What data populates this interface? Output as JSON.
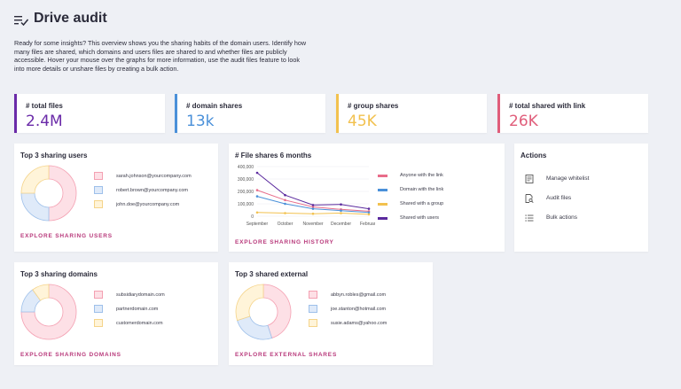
{
  "header": {
    "title": "Drive audit",
    "icon": "playlist-check-icon",
    "description": "Ready for some insights? This overview shows you the sharing habits of the domain users. Identify how many files are shared, which domains and users files are shared to and whether files are publicly accessible. Hover your mouse over the graphs for more information, use the audit files feature to look into more details or unshare files by creating a bulk action."
  },
  "kpis": [
    {
      "label": "# total files",
      "value": "2.4M",
      "color": "#6a2aa8"
    },
    {
      "label": "# domain shares",
      "value": "13k",
      "color": "#4a90d9"
    },
    {
      "label": "# group shares",
      "value": "45K",
      "color": "#f2c14e"
    },
    {
      "label": "# total shared with link",
      "value": "26K",
      "color": "#e05d7a"
    }
  ],
  "top_users": {
    "title": "Top 3 sharing users",
    "link": "EXPLORE SHARING USERS",
    "items": [
      {
        "label": "sarah.johnson@yourcompany.com",
        "color": "#fde0e6",
        "border": "#f4a0b2"
      },
      {
        "label": "robert.brown@yourcompany.com",
        "color": "#dfeaf9",
        "border": "#9ec0ea"
      },
      {
        "label": "john.doe@yourcompany.com",
        "color": "#fff4d9",
        "border": "#f5d48a"
      }
    ]
  },
  "file_shares": {
    "title": "# File shares 6 months",
    "link": "EXPLORE SHARING HISTORY"
  },
  "actions": {
    "title": "Actions",
    "items": [
      {
        "label": "Manage whitelist",
        "icon": "list-doc-icon"
      },
      {
        "label": "Audit files",
        "icon": "file-search-icon"
      },
      {
        "label": "Bulk actions",
        "icon": "bulk-list-icon"
      }
    ]
  },
  "top_domains": {
    "title": "Top 3 sharing domains",
    "link": "EXPLORE SHARING DOMAINS",
    "items": [
      {
        "label": "subsidiarydomain.com",
        "color": "#fde0e6",
        "border": "#f4a0b2"
      },
      {
        "label": "partnerdomain.com",
        "color": "#dfeaf9",
        "border": "#9ec0ea"
      },
      {
        "label": "customerdomain.com",
        "color": "#fff4d9",
        "border": "#f5d48a"
      }
    ]
  },
  "top_external": {
    "title": "Top 3 shared external",
    "link": "EXPLORE EXTERNAL SHARES",
    "items": [
      {
        "label": "abbyn.robles@gmail.com",
        "color": "#fde0e6",
        "border": "#f4a0b2"
      },
      {
        "label": "joe.stanton@hotmail.com",
        "color": "#dfeaf9",
        "border": "#9ec0ea"
      },
      {
        "label": "susie.adams@yahoo.com",
        "color": "#fff4d9",
        "border": "#f5d48a"
      }
    ]
  },
  "chart_data": [
    {
      "type": "pie",
      "labels": [
        "sarah.johnson@yourcompany.com",
        "robert.brown@yourcompany.com",
        "john.doe@yourcompany.com"
      ],
      "values": [
        50,
        25,
        25
      ],
      "colors": [
        "#fde0e6",
        "#dfeaf9",
        "#fff4d9"
      ],
      "borders": [
        "#f4a0b2",
        "#9ec0ea",
        "#f5d48a"
      ]
    },
    {
      "type": "line",
      "categories": [
        "September",
        "October",
        "November",
        "December",
        "February"
      ],
      "ylim": [
        0,
        400000
      ],
      "yticks": [
        "400,000",
        "300,000",
        "200,000",
        "100,000",
        "0"
      ],
      "series": [
        {
          "name": "Anyone with the link",
          "color": "#e86c8a",
          "values": [
            210000,
            130000,
            75000,
            55000,
            40000
          ]
        },
        {
          "name": "Domain with the link",
          "color": "#4a90d9",
          "values": [
            160000,
            100000,
            60000,
            45000,
            30000
          ]
        },
        {
          "name": "Shared with a group",
          "color": "#f2c14e",
          "values": [
            30000,
            25000,
            20000,
            25000,
            15000
          ]
        },
        {
          "name": "Shared with users",
          "color": "#5b2a9e",
          "values": [
            350000,
            170000,
            90000,
            95000,
            60000
          ]
        }
      ]
    },
    {
      "type": "pie",
      "labels": [
        "subsidiarydomain.com",
        "partnerdomain.com",
        "customerdomain.com"
      ],
      "values": [
        75,
        15,
        10
      ],
      "colors": [
        "#fde0e6",
        "#dfeaf9",
        "#fff4d9"
      ],
      "borders": [
        "#f4a0b2",
        "#9ec0ea",
        "#f5d48a"
      ]
    },
    {
      "type": "pie",
      "labels": [
        "abbyn.robles@gmail.com",
        "joe.stanton@hotmail.com",
        "susie.adams@yahoo.com"
      ],
      "values": [
        45,
        25,
        30
      ],
      "colors": [
        "#fde0e6",
        "#dfeaf9",
        "#fff4d9"
      ],
      "borders": [
        "#f4a0b2",
        "#9ec0ea",
        "#f5d48a"
      ]
    }
  ]
}
